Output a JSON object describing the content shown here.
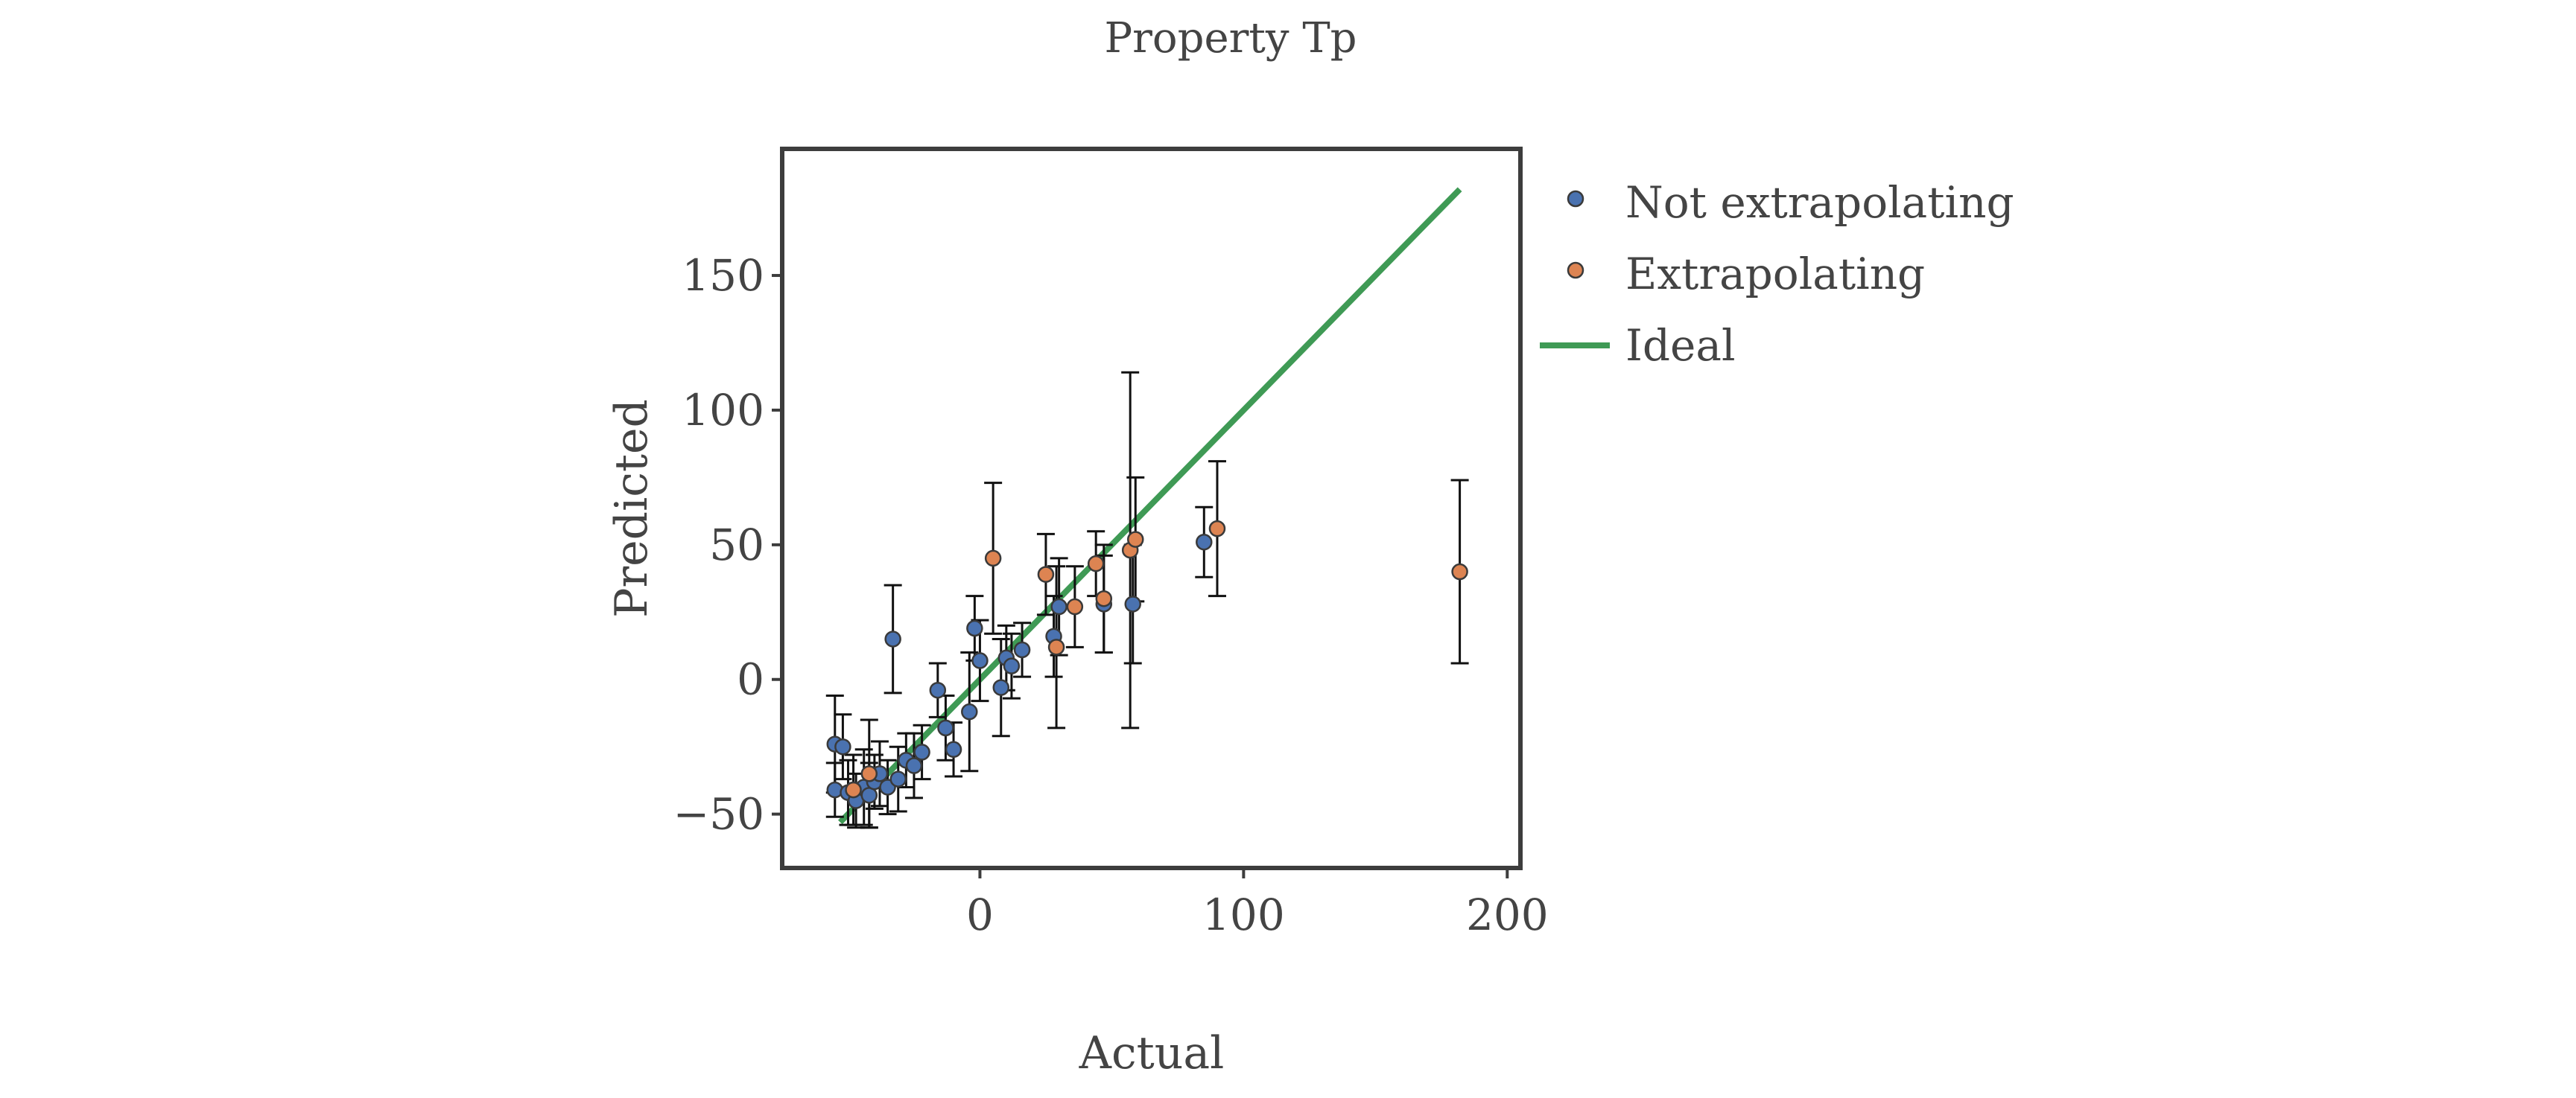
{
  "chart_data": {
    "type": "scatter",
    "title": "Property Tp",
    "xlabel": "Actual",
    "ylabel": "Predicted",
    "xlim": [
      -75,
      205
    ],
    "ylim": [
      -70,
      197
    ],
    "xticks": [
      0,
      100,
      200
    ],
    "yticks": [
      -50,
      0,
      50,
      100,
      150
    ],
    "grid": false,
    "legend": {
      "placement": "outside-right"
    },
    "colors": {
      "not_extrapolating": "#4a72b0",
      "extrapolating": "#dd8452",
      "ideal": "#3f9a55",
      "errorbar": "#111111",
      "frame": "#3d3d3d"
    },
    "series": [
      {
        "name": "Not extrapolating",
        "points": [
          {
            "x": -55,
            "y": -24,
            "err": 18
          },
          {
            "x": -52,
            "y": -25,
            "err": 12
          },
          {
            "x": -55,
            "y": -41,
            "err": 10
          },
          {
            "x": -50,
            "y": -42,
            "err": 12
          },
          {
            "x": -47,
            "y": -45,
            "err": 10
          },
          {
            "x": -44,
            "y": -40,
            "err": 14
          },
          {
            "x": -42,
            "y": -43,
            "err": 12
          },
          {
            "x": -40,
            "y": -38,
            "err": 10
          },
          {
            "x": -38,
            "y": -35,
            "err": 12
          },
          {
            "x": -35,
            "y": -40,
            "err": 10
          },
          {
            "x": -33,
            "y": 15,
            "err": 20
          },
          {
            "x": -31,
            "y": -37,
            "err": 12
          },
          {
            "x": -28,
            "y": -30,
            "err": 10
          },
          {
            "x": -25,
            "y": -32,
            "err": 12
          },
          {
            "x": -22,
            "y": -27,
            "err": 10
          },
          {
            "x": -16,
            "y": -4,
            "err": 10
          },
          {
            "x": -13,
            "y": -18,
            "err": 12
          },
          {
            "x": -10,
            "y": -26,
            "err": 10
          },
          {
            "x": -4,
            "y": -12,
            "err": 22
          },
          {
            "x": -2,
            "y": 19,
            "err": 12
          },
          {
            "x": 0,
            "y": 7,
            "err": 15
          },
          {
            "x": 8,
            "y": -3,
            "err": 18
          },
          {
            "x": 10,
            "y": 8,
            "err": 12
          },
          {
            "x": 12,
            "y": 5,
            "err": 12
          },
          {
            "x": 16,
            "y": 11,
            "err": 10
          },
          {
            "x": 28,
            "y": 16,
            "err": 15
          },
          {
            "x": 30,
            "y": 27,
            "err": 18
          },
          {
            "x": 47,
            "y": 28,
            "err": 18
          },
          {
            "x": 58,
            "y": 28,
            "err": 22
          },
          {
            "x": 85,
            "y": 51,
            "err": 13
          }
        ]
      },
      {
        "name": "Extrapolating",
        "points": [
          {
            "x": -48,
            "y": -41,
            "err": 13
          },
          {
            "x": -42,
            "y": -35,
            "err": 20
          },
          {
            "x": 5,
            "y": 45,
            "err": 28
          },
          {
            "x": 25,
            "y": 39,
            "err": 15
          },
          {
            "x": 29,
            "y": 12,
            "err": 30
          },
          {
            "x": 36,
            "y": 27,
            "err": 15
          },
          {
            "x": 44,
            "y": 43,
            "err": 12
          },
          {
            "x": 47,
            "y": 30,
            "err": 20
          },
          {
            "x": 57,
            "y": 48,
            "err": 66
          },
          {
            "x": 59,
            "y": 52,
            "err": 23
          },
          {
            "x": 90,
            "y": 56,
            "err": 25
          },
          {
            "x": 182,
            "y": 40,
            "err": 34
          }
        ]
      },
      {
        "name": "Ideal",
        "line": [
          [
            -53,
            -53
          ],
          [
            182,
            182
          ]
        ]
      }
    ]
  }
}
